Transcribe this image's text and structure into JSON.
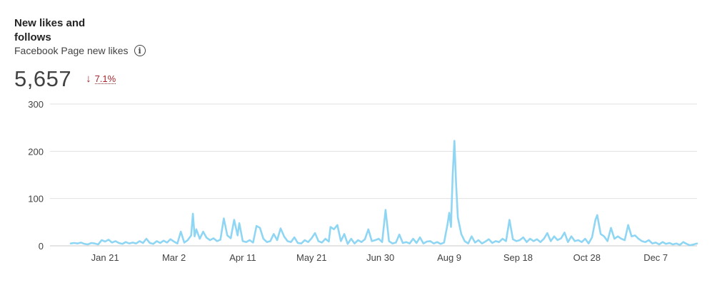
{
  "card": {
    "title": "New likes and follows",
    "subtitle": "Facebook Page new likes",
    "info_icon": "info-icon",
    "metric_value": "5,657",
    "change_direction": "down",
    "change_value": "7.1%",
    "change_color": "#a4262c"
  },
  "chart_data": {
    "type": "line",
    "title": "",
    "xlabel": "",
    "ylabel": "",
    "ylim": [
      0,
      300
    ],
    "xlim": [
      "2023-01-01",
      "2023-12-31"
    ],
    "grid": true,
    "y_ticks": [
      "300",
      "200",
      "100",
      "0"
    ],
    "x_ticks": [
      {
        "label": "Jan 21",
        "date": "2023-01-21"
      },
      {
        "label": "Mar 2",
        "date": "2023-03-02"
      },
      {
        "label": "Apr 11",
        "date": "2023-04-11"
      },
      {
        "label": "May 21",
        "date": "2023-05-21"
      },
      {
        "label": "Jun 30",
        "date": "2023-06-30"
      },
      {
        "label": "Aug 9",
        "date": "2023-08-09"
      },
      {
        "label": "Sep 18",
        "date": "2023-09-18"
      },
      {
        "label": "Oct 28",
        "date": "2023-10-28"
      },
      {
        "label": "Dec 7",
        "date": "2023-12-07"
      }
    ],
    "series": [
      {
        "color": "#8fd6f4",
        "points": [
          [
            "2023-01-01",
            5
          ],
          [
            "2023-01-03",
            6
          ],
          [
            "2023-01-05",
            5
          ],
          [
            "2023-01-07",
            7
          ],
          [
            "2023-01-09",
            4
          ],
          [
            "2023-01-11",
            3
          ],
          [
            "2023-01-13",
            6
          ],
          [
            "2023-01-15",
            5
          ],
          [
            "2023-01-17",
            3
          ],
          [
            "2023-01-19",
            12
          ],
          [
            "2023-01-21",
            9
          ],
          [
            "2023-01-23",
            13
          ],
          [
            "2023-01-25",
            7
          ],
          [
            "2023-01-27",
            10
          ],
          [
            "2023-01-29",
            6
          ],
          [
            "2023-01-31",
            4
          ],
          [
            "2023-02-02",
            8
          ],
          [
            "2023-02-04",
            5
          ],
          [
            "2023-02-06",
            7
          ],
          [
            "2023-02-08",
            5
          ],
          [
            "2023-02-10",
            10
          ],
          [
            "2023-02-12",
            6
          ],
          [
            "2023-02-14",
            15
          ],
          [
            "2023-02-16",
            6
          ],
          [
            "2023-02-18",
            4
          ],
          [
            "2023-02-20",
            10
          ],
          [
            "2023-02-22",
            6
          ],
          [
            "2023-02-24",
            11
          ],
          [
            "2023-02-26",
            7
          ],
          [
            "2023-02-28",
            14
          ],
          [
            "2023-03-02",
            9
          ],
          [
            "2023-03-04",
            5
          ],
          [
            "2023-03-06",
            30
          ],
          [
            "2023-03-08",
            7
          ],
          [
            "2023-03-10",
            12
          ],
          [
            "2023-03-12",
            22
          ],
          [
            "2023-03-13",
            68
          ],
          [
            "2023-03-14",
            20
          ],
          [
            "2023-03-15",
            35
          ],
          [
            "2023-03-17",
            15
          ],
          [
            "2023-03-19",
            30
          ],
          [
            "2023-03-21",
            17
          ],
          [
            "2023-03-23",
            12
          ],
          [
            "2023-03-25",
            16
          ],
          [
            "2023-03-27",
            10
          ],
          [
            "2023-03-29",
            13
          ],
          [
            "2023-03-31",
            58
          ],
          [
            "2023-04-02",
            22
          ],
          [
            "2023-04-04",
            16
          ],
          [
            "2023-04-06",
            55
          ],
          [
            "2023-04-08",
            22
          ],
          [
            "2023-04-09",
            48
          ],
          [
            "2023-04-11",
            10
          ],
          [
            "2023-04-13",
            8
          ],
          [
            "2023-04-15",
            12
          ],
          [
            "2023-04-17",
            7
          ],
          [
            "2023-04-19",
            42
          ],
          [
            "2023-04-21",
            38
          ],
          [
            "2023-04-23",
            15
          ],
          [
            "2023-04-25",
            8
          ],
          [
            "2023-04-27",
            10
          ],
          [
            "2023-04-29",
            25
          ],
          [
            "2023-05-01",
            12
          ],
          [
            "2023-05-03",
            37
          ],
          [
            "2023-05-05",
            20
          ],
          [
            "2023-05-07",
            10
          ],
          [
            "2023-05-09",
            8
          ],
          [
            "2023-05-11",
            18
          ],
          [
            "2023-05-13",
            6
          ],
          [
            "2023-05-15",
            5
          ],
          [
            "2023-05-17",
            12
          ],
          [
            "2023-05-19",
            8
          ],
          [
            "2023-05-21",
            16
          ],
          [
            "2023-05-23",
            27
          ],
          [
            "2023-05-25",
            10
          ],
          [
            "2023-05-27",
            7
          ],
          [
            "2023-05-29",
            15
          ],
          [
            "2023-05-31",
            9
          ],
          [
            "2023-06-01",
            40
          ],
          [
            "2023-06-03",
            35
          ],
          [
            "2023-06-05",
            44
          ],
          [
            "2023-06-07",
            10
          ],
          [
            "2023-06-09",
            25
          ],
          [
            "2023-06-11",
            4
          ],
          [
            "2023-06-13",
            15
          ],
          [
            "2023-06-15",
            5
          ],
          [
            "2023-06-17",
            12
          ],
          [
            "2023-06-19",
            8
          ],
          [
            "2023-06-21",
            14
          ],
          [
            "2023-06-23",
            35
          ],
          [
            "2023-06-25",
            10
          ],
          [
            "2023-06-27",
            12
          ],
          [
            "2023-06-29",
            15
          ],
          [
            "2023-07-01",
            8
          ],
          [
            "2023-07-03",
            76
          ],
          [
            "2023-07-05",
            10
          ],
          [
            "2023-07-07",
            5
          ],
          [
            "2023-07-09",
            7
          ],
          [
            "2023-07-11",
            24
          ],
          [
            "2023-07-13",
            6
          ],
          [
            "2023-07-15",
            8
          ],
          [
            "2023-07-17",
            5
          ],
          [
            "2023-07-19",
            15
          ],
          [
            "2023-07-21",
            6
          ],
          [
            "2023-07-23",
            18
          ],
          [
            "2023-07-25",
            5
          ],
          [
            "2023-07-27",
            9
          ],
          [
            "2023-07-29",
            10
          ],
          [
            "2023-07-31",
            5
          ],
          [
            "2023-08-02",
            8
          ],
          [
            "2023-08-04",
            4
          ],
          [
            "2023-08-06",
            7
          ],
          [
            "2023-08-08",
            45
          ],
          [
            "2023-08-09",
            70
          ],
          [
            "2023-08-10",
            40
          ],
          [
            "2023-08-11",
            150
          ],
          [
            "2023-08-12",
            222
          ],
          [
            "2023-08-13",
            130
          ],
          [
            "2023-08-14",
            60
          ],
          [
            "2023-08-16",
            25
          ],
          [
            "2023-08-18",
            10
          ],
          [
            "2023-08-20",
            5
          ],
          [
            "2023-08-22",
            20
          ],
          [
            "2023-08-24",
            7
          ],
          [
            "2023-08-26",
            12
          ],
          [
            "2023-08-28",
            5
          ],
          [
            "2023-08-30",
            9
          ],
          [
            "2023-09-01",
            14
          ],
          [
            "2023-09-03",
            6
          ],
          [
            "2023-09-05",
            10
          ],
          [
            "2023-09-07",
            8
          ],
          [
            "2023-09-09",
            15
          ],
          [
            "2023-09-11",
            10
          ],
          [
            "2023-09-13",
            55
          ],
          [
            "2023-09-15",
            14
          ],
          [
            "2023-09-17",
            10
          ],
          [
            "2023-09-19",
            12
          ],
          [
            "2023-09-21",
            18
          ],
          [
            "2023-09-23",
            8
          ],
          [
            "2023-09-25",
            15
          ],
          [
            "2023-09-27",
            10
          ],
          [
            "2023-09-29",
            14
          ],
          [
            "2023-10-01",
            8
          ],
          [
            "2023-10-03",
            15
          ],
          [
            "2023-10-05",
            27
          ],
          [
            "2023-10-07",
            10
          ],
          [
            "2023-10-09",
            20
          ],
          [
            "2023-10-11",
            12
          ],
          [
            "2023-10-13",
            16
          ],
          [
            "2023-10-15",
            28
          ],
          [
            "2023-10-17",
            8
          ],
          [
            "2023-10-19",
            20
          ],
          [
            "2023-10-21",
            10
          ],
          [
            "2023-10-23",
            12
          ],
          [
            "2023-10-25",
            8
          ],
          [
            "2023-10-27",
            15
          ],
          [
            "2023-10-29",
            5
          ],
          [
            "2023-10-31",
            18
          ],
          [
            "2023-11-02",
            55
          ],
          [
            "2023-11-03",
            65
          ],
          [
            "2023-11-05",
            25
          ],
          [
            "2023-11-07",
            20
          ],
          [
            "2023-11-09",
            10
          ],
          [
            "2023-11-11",
            38
          ],
          [
            "2023-11-13",
            15
          ],
          [
            "2023-11-15",
            20
          ],
          [
            "2023-11-17",
            15
          ],
          [
            "2023-11-19",
            12
          ],
          [
            "2023-11-21",
            44
          ],
          [
            "2023-11-23",
            20
          ],
          [
            "2023-11-25",
            22
          ],
          [
            "2023-11-27",
            15
          ],
          [
            "2023-11-29",
            10
          ],
          [
            "2023-12-01",
            8
          ],
          [
            "2023-12-03",
            12
          ],
          [
            "2023-12-05",
            5
          ],
          [
            "2023-12-07",
            7
          ],
          [
            "2023-12-09",
            3
          ],
          [
            "2023-12-11",
            8
          ],
          [
            "2023-12-13",
            4
          ],
          [
            "2023-12-15",
            6
          ],
          [
            "2023-12-17",
            3
          ],
          [
            "2023-12-19",
            5
          ],
          [
            "2023-12-21",
            2
          ],
          [
            "2023-12-23",
            8
          ],
          [
            "2023-12-25",
            4
          ],
          [
            "2023-12-27",
            1
          ],
          [
            "2023-12-29",
            3
          ],
          [
            "2023-12-31",
            5
          ]
        ]
      }
    ]
  }
}
